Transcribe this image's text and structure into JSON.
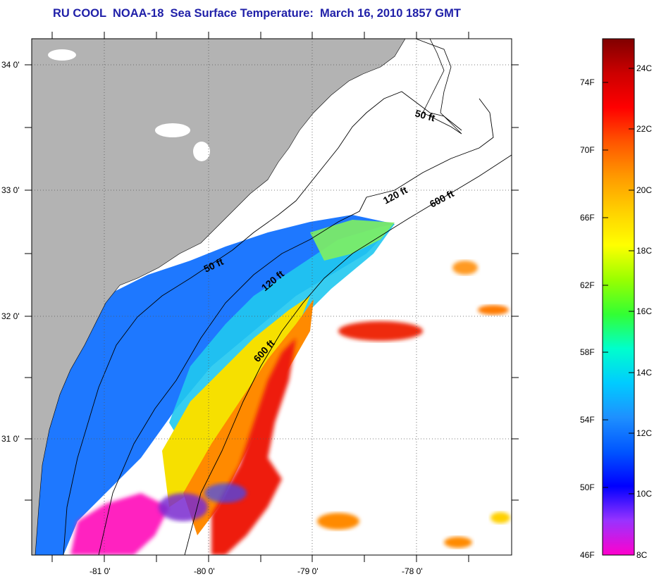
{
  "title": "RU COOL  NOAA-18  Sea Surface Temperature:  March 16, 2010 1857 GMT",
  "colors": {
    "land": "#b3b3b3",
    "ocean_no_data": "#ffffff",
    "grid": "#555555",
    "title": "#1f1fa8"
  },
  "axes": {
    "latitude_ticks": [
      "34 0'",
      "33 0'",
      "32 0'",
      "31 0'"
    ],
    "longitude_ticks": [
      "-81 0'",
      "-80 0'",
      "-79 0'",
      "-78 0'"
    ]
  },
  "depth_contours": [
    {
      "id": "isobath-50-north",
      "label": "50 ft"
    },
    {
      "id": "isobath-120-north",
      "label": "120 ft"
    },
    {
      "id": "isobath-600-north",
      "label": "600 ft"
    },
    {
      "id": "isobath-50-south",
      "label": "50 ft"
    },
    {
      "id": "isobath-120-south",
      "label": "120 ft"
    },
    {
      "id": "isobath-600-south",
      "label": "600 ft"
    }
  ],
  "colorbar": {
    "fahrenheit_labels": [
      "74F",
      "70F",
      "66F",
      "62F",
      "58F",
      "54F",
      "50F",
      "46F"
    ],
    "celsius_labels": [
      "24C",
      "22C",
      "20C",
      "18C",
      "16C",
      "14C",
      "12C",
      "10C",
      "8C"
    ],
    "gradient_stops": [
      "#ff00cc",
      "#9933ff",
      "#0000ff",
      "#0055ff",
      "#1e90ff",
      "#00ccff",
      "#00ffcc",
      "#33ff33",
      "#99ff00",
      "#ffff00",
      "#ffd000",
      "#ff9900",
      "#ff5500",
      "#ff0000",
      "#cc0000",
      "#800000"
    ]
  }
}
